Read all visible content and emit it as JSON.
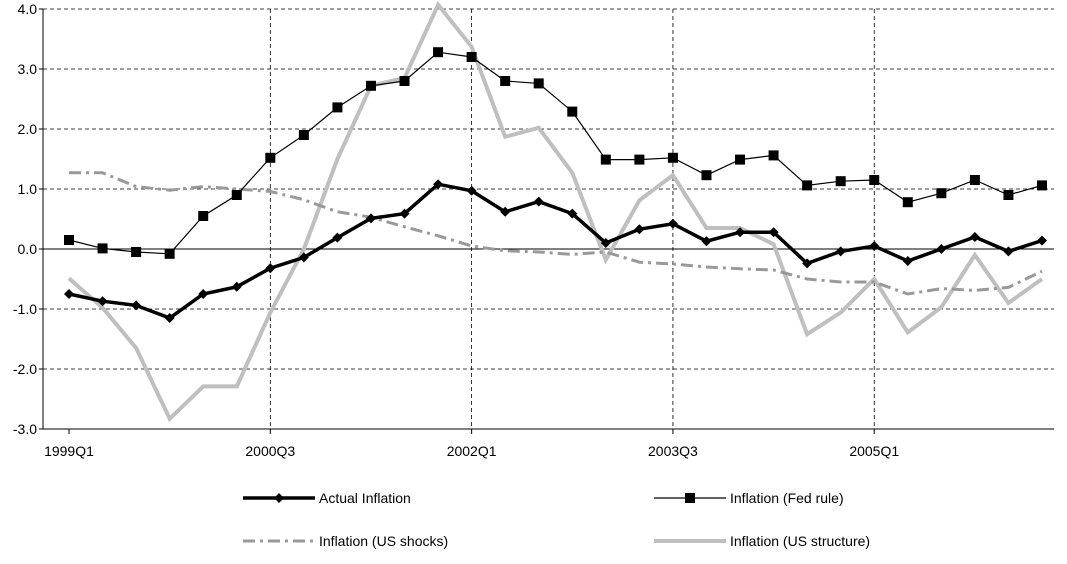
{
  "chart_data": {
    "type": "line",
    "title": "",
    "xlabel": "",
    "ylabel": "",
    "ylim": [
      -3.0,
      4.0
    ],
    "y_ticks": [
      "4.0",
      "3.0",
      "2.0",
      "1.0",
      "0.0",
      "-1.0",
      "-2.0",
      "-3.0"
    ],
    "y_tick_values": [
      4.0,
      3.0,
      2.0,
      1.0,
      0.0,
      -1.0,
      -2.0,
      -3.0
    ],
    "x_ticks": [
      {
        "label": "1999Q1",
        "index": 0
      },
      {
        "label": "2000Q3",
        "index": 6
      },
      {
        "label": "2002Q1",
        "index": 12
      },
      {
        "label": "2003Q3",
        "index": 18
      },
      {
        "label": "2005Q1",
        "index": 24
      }
    ],
    "grid": "dashed",
    "legend_position": "bottom",
    "x": [
      "1999Q1",
      "1999Q2",
      "1999Q3",
      "1999Q4",
      "2000Q1",
      "2000Q2",
      "2000Q3",
      "2000Q4",
      "2001Q1",
      "2001Q2",
      "2001Q3",
      "2001Q4",
      "2002Q1",
      "2002Q2",
      "2002Q3",
      "2002Q4",
      "2003Q1",
      "2003Q2",
      "2003Q3",
      "2003Q4",
      "2004Q1",
      "2004Q2",
      "2004Q3",
      "2004Q4",
      "2005Q1",
      "2005Q2",
      "2005Q3",
      "2005Q4",
      "2006Q1",
      "2006Q2"
    ],
    "series": [
      {
        "name": "Actual Inflation",
        "color": "#000000",
        "style": "thick-diamond",
        "values": [
          -0.75,
          -0.87,
          -0.94,
          -1.15,
          -0.75,
          -0.63,
          -0.32,
          -0.14,
          0.19,
          0.51,
          0.59,
          1.08,
          0.97,
          0.62,
          0.79,
          0.59,
          0.1,
          0.33,
          0.42,
          0.13,
          0.28,
          0.28,
          -0.24,
          -0.04,
          0.05,
          -0.2,
          0.0,
          0.2,
          -0.04,
          0.14
        ]
      },
      {
        "name": "Inflation (Fed rule)",
        "color": "#000000",
        "style": "thin-square",
        "values": [
          0.15,
          0.01,
          -0.05,
          -0.08,
          0.55,
          0.9,
          1.52,
          1.9,
          2.36,
          2.72,
          2.8,
          3.28,
          3.2,
          2.8,
          2.76,
          2.29,
          1.49,
          1.49,
          1.52,
          1.23,
          1.49,
          1.56,
          1.06,
          1.13,
          1.15,
          0.78,
          0.93,
          1.15,
          0.9,
          1.06
        ]
      },
      {
        "name": "Inflation (US shocks)",
        "color": "#999999",
        "style": "dash-dot",
        "values": [
          1.27,
          1.27,
          1.04,
          0.98,
          1.04,
          1.0,
          0.96,
          0.82,
          0.62,
          0.53,
          0.37,
          0.22,
          0.05,
          -0.03,
          -0.05,
          -0.09,
          -0.05,
          -0.22,
          -0.25,
          -0.3,
          -0.33,
          -0.35,
          -0.5,
          -0.55,
          -0.55,
          -0.75,
          -0.66,
          -0.69,
          -0.64,
          -0.37
        ]
      },
      {
        "name": "Inflation (US structure)",
        "color": "#bfbfbf",
        "style": "thick",
        "values": [
          -0.49,
          -0.98,
          -1.65,
          -2.83,
          -2.29,
          -2.29,
          -1.06,
          0.0,
          1.5,
          2.72,
          2.85,
          4.07,
          3.37,
          1.87,
          2.02,
          1.27,
          -0.18,
          0.81,
          1.23,
          0.35,
          0.35,
          0.08,
          -1.42,
          -1.06,
          -0.5,
          -1.39,
          -0.97,
          -0.1,
          -0.9,
          -0.5
        ]
      }
    ]
  }
}
